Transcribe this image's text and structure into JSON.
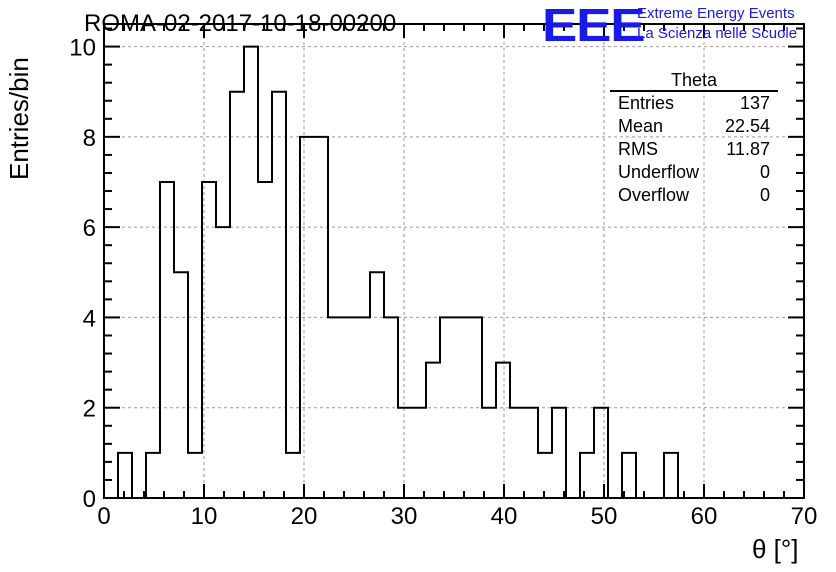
{
  "header": {
    "title": "ROMA-02-2017-10-18-00200",
    "logo_text": "EEE",
    "logo_line1": "Extreme Energy Events",
    "logo_line2": "La Scienza nelle Scuole",
    "logo_color": "#1a1ae6"
  },
  "stats": {
    "name": "Theta",
    "rows": [
      {
        "label": "Entries",
        "value": "137"
      },
      {
        "label": "Mean",
        "value": "22.54"
      },
      {
        "label": "RMS",
        "value": "11.87"
      },
      {
        "label": "Underflow",
        "value": "0"
      },
      {
        "label": "Overflow",
        "value": "0"
      }
    ]
  },
  "chart_data": {
    "type": "histogram",
    "xlabel": "θ [°]",
    "ylabel": "Entries/bin",
    "xlim": [
      0,
      70
    ],
    "ylim": [
      0,
      10.5
    ],
    "xticks": [
      0,
      10,
      20,
      30,
      40,
      50,
      60,
      70
    ],
    "yticks": [
      0,
      2,
      4,
      6,
      8,
      10
    ],
    "grid": true,
    "bin_edges": [
      0,
      1.4,
      2.8,
      4.2,
      5.6,
      7.0,
      8.4,
      9.8,
      11.2,
      12.6,
      14.0,
      15.4,
      16.8,
      18.2,
      19.6,
      21.0,
      22.4,
      23.8,
      25.2,
      26.6,
      28.0,
      29.4,
      30.8,
      32.2,
      33.6,
      35.0,
      36.4,
      37.8,
      39.2,
      40.6,
      42.0,
      43.4,
      44.8,
      46.2,
      47.6,
      49.0,
      50.4,
      51.8,
      53.2,
      54.6,
      56.0,
      57.4,
      58.8,
      60.2,
      61.6,
      63.0,
      64.4,
      65.8,
      67.2,
      68.6,
      70.0
    ],
    "counts": [
      0,
      1,
      0,
      1,
      7,
      5,
      1,
      7,
      6,
      9,
      10,
      7,
      9,
      1,
      8,
      8,
      4,
      4,
      4,
      5,
      4,
      2,
      2,
      3,
      4,
      4,
      4,
      2,
      3,
      2,
      2,
      1,
      2,
      0,
      1,
      2,
      0,
      1,
      0,
      0,
      1,
      0,
      0,
      0,
      0,
      0,
      0,
      0,
      0,
      0
    ]
  }
}
